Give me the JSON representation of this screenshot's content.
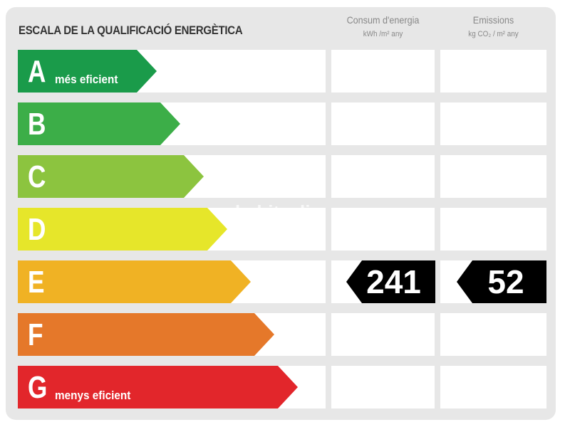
{
  "title": "ESCALA DE LA QUALIFICACIÓ ENERGÈTICA",
  "columns": {
    "consumption": {
      "label": "Consum d'energia",
      "unit": "kWh /m² any"
    },
    "emissions": {
      "label": "Emissions",
      "unit": "kg CO₂ / m² any"
    }
  },
  "classes": [
    {
      "letter": "A",
      "sublabel": "més eficient",
      "color": "#1a9b4a"
    },
    {
      "letter": "B",
      "sublabel": "",
      "color": "#3cae48"
    },
    {
      "letter": "C",
      "sublabel": "",
      "color": "#8cc43f"
    },
    {
      "letter": "D",
      "sublabel": "",
      "color": "#e6e62a"
    },
    {
      "letter": "E",
      "sublabel": "",
      "color": "#f0b224"
    },
    {
      "letter": "F",
      "sublabel": "",
      "color": "#e5782a"
    },
    {
      "letter": "G",
      "sublabel": "menys eficient",
      "color": "#e2262b"
    }
  ],
  "rating": {
    "class": "E",
    "consumption_value": "241",
    "emissions_value": "52"
  },
  "watermark": "habitaclia"
}
